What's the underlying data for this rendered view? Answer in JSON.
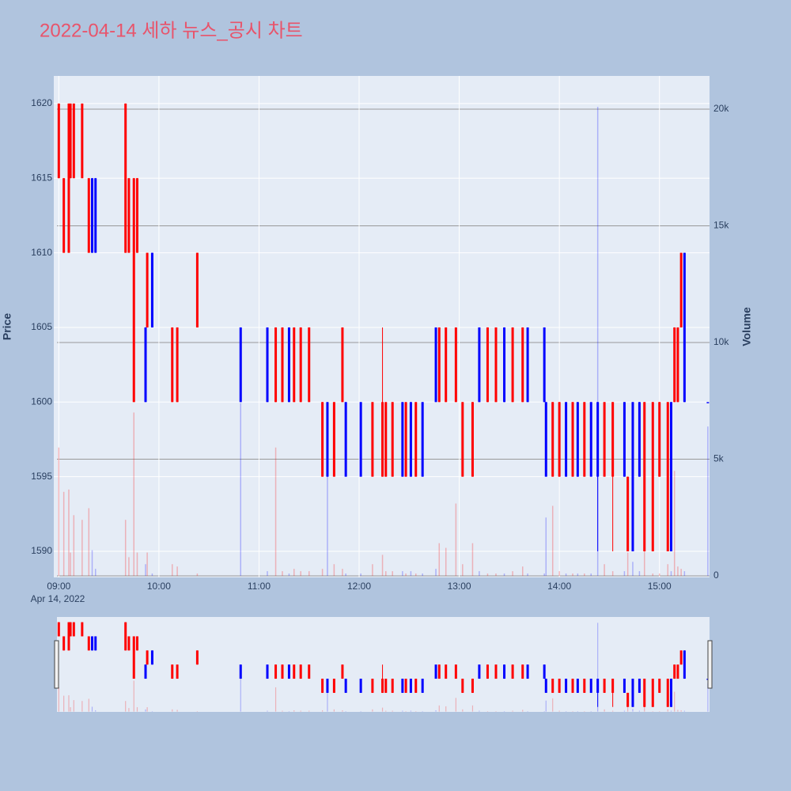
{
  "chart_data": {
    "type": "candlestick",
    "title": "2022-04-14 세하 뉴스_공시 차트",
    "y_label": "Price",
    "y2_label": "Volume",
    "x_date_label": "Apr 14, 2022",
    "increasing_color": "#ff0000",
    "decreasing_color": "#0000ff",
    "x": [
      "09:00",
      "09:03",
      "09:06",
      "09:07",
      "09:09",
      "09:14",
      "09:18",
      "09:20",
      "09:22",
      "09:40",
      "09:42",
      "09:45",
      "09:47",
      "09:52",
      "09:53",
      "09:56",
      "10:08",
      "10:11",
      "10:23",
      "10:49",
      "11:05",
      "11:10",
      "11:14",
      "11:18",
      "11:21",
      "11:25",
      "11:30",
      "11:38",
      "11:41",
      "11:45",
      "11:50",
      "11:52",
      "12:01",
      "12:08",
      "12:14",
      "12:16",
      "12:20",
      "12:26",
      "12:28",
      "12:31",
      "12:34",
      "12:38",
      "12:46",
      "12:48",
      "12:52",
      "12:58",
      "13:02",
      "13:08",
      "13:12",
      "13:17",
      "13:22",
      "13:27",
      "13:32",
      "13:38",
      "13:41",
      "13:51",
      "13:52",
      "13:56",
      "14:00",
      "14:04",
      "14:08",
      "14:11",
      "14:15",
      "14:19",
      "14:23",
      "14:27",
      "14:32",
      "14:39",
      "14:41",
      "14:44",
      "14:48",
      "14:51",
      "14:56",
      "15:00",
      "15:05",
      "15:07",
      "15:09",
      "15:11",
      "15:13",
      "15:15",
      "15:29"
    ],
    "open": [
      1615,
      1610,
      1610,
      1615,
      1615,
      1615,
      1610,
      1615,
      1615,
      1610,
      1610,
      1600,
      1610,
      1605,
      1605,
      1610,
      1600,
      1600,
      1605,
      1605,
      1605,
      1600,
      1600,
      1605,
      1600,
      1600,
      1600,
      1595,
      1600,
      1595,
      1600,
      1600,
      1600,
      1595,
      1595,
      1595,
      1595,
      1600,
      1595,
      1600,
      1595,
      1600,
      1605,
      1600,
      1600,
      1600,
      1595,
      1595,
      1605,
      1600,
      1600,
      1605,
      1600,
      1600,
      1605,
      1605,
      1600,
      1595,
      1595,
      1600,
      1595,
      1600,
      1595,
      1600,
      1600,
      1595,
      1595,
      1600,
      1590,
      1600,
      1600,
      1590,
      1590,
      1595,
      1590,
      1600,
      1600,
      1600,
      1605,
      1610,
      1600
    ],
    "high": [
      1620,
      1615,
      1620,
      1620,
      1620,
      1620,
      1615,
      1615,
      1615,
      1620,
      1615,
      1615,
      1615,
      1605,
      1610,
      1610,
      1605,
      1605,
      1610,
      1605,
      1605,
      1605,
      1605,
      1605,
      1605,
      1605,
      1605,
      1600,
      1600,
      1600,
      1605,
      1600,
      1600,
      1600,
      1605,
      1600,
      1600,
      1600,
      1600,
      1600,
      1600,
      1600,
      1605,
      1605,
      1605,
      1605,
      1600,
      1600,
      1605,
      1605,
      1605,
      1605,
      1605,
      1605,
      1605,
      1605,
      1600,
      1600,
      1600,
      1600,
      1600,
      1600,
      1600,
      1600,
      1600,
      1600,
      1600,
      1600,
      1595,
      1600,
      1600,
      1600,
      1600,
      1600,
      1600,
      1600,
      1605,
      1605,
      1610,
      1610,
      1600
    ],
    "low": [
      1615,
      1610,
      1610,
      1615,
      1615,
      1615,
      1610,
      1610,
      1610,
      1610,
      1610,
      1600,
      1610,
      1600,
      1605,
      1605,
      1600,
      1600,
      1605,
      1600,
      1600,
      1600,
      1600,
      1600,
      1600,
      1600,
      1600,
      1595,
      1595,
      1595,
      1600,
      1595,
      1595,
      1595,
      1595,
      1595,
      1595,
      1595,
      1595,
      1595,
      1595,
      1595,
      1600,
      1600,
      1600,
      1600,
      1595,
      1595,
      1600,
      1600,
      1600,
      1600,
      1600,
      1600,
      1600,
      1600,
      1595,
      1595,
      1595,
      1595,
      1595,
      1595,
      1595,
      1595,
      1590,
      1595,
      1590,
      1595,
      1590,
      1590,
      1595,
      1590,
      1590,
      1595,
      1590,
      1590,
      1600,
      1600,
      1605,
      1600,
      1600
    ],
    "close": [
      1620,
      1615,
      1620,
      1620,
      1620,
      1620,
      1615,
      1610,
      1610,
      1620,
      1615,
      1615,
      1615,
      1600,
      1610,
      1605,
      1605,
      1605,
      1610,
      1600,
      1600,
      1605,
      1605,
      1600,
      1605,
      1605,
      1605,
      1600,
      1595,
      1600,
      1605,
      1595,
      1595,
      1600,
      1600,
      1600,
      1600,
      1595,
      1600,
      1595,
      1600,
      1595,
      1600,
      1605,
      1605,
      1605,
      1600,
      1600,
      1600,
      1605,
      1605,
      1600,
      1605,
      1605,
      1600,
      1600,
      1595,
      1600,
      1600,
      1595,
      1600,
      1595,
      1600,
      1595,
      1595,
      1600,
      1600,
      1595,
      1595,
      1590,
      1595,
      1600,
      1600,
      1600,
      1600,
      1590,
      1605,
      1605,
      1610,
      1600,
      1600
    ],
    "volume": [
      5500,
      3600,
      3700,
      1000,
      2600,
      2400,
      2900,
      1100,
      300,
      2400,
      800,
      7000,
      1000,
      500,
      1000,
      100,
      500,
      400,
      100,
      7400,
      200,
      5500,
      200,
      100,
      300,
      200,
      200,
      300,
      4300,
      500,
      300,
      100,
      100,
      500,
      900,
      200,
      200,
      200,
      100,
      200,
      100,
      100,
      300,
      1400,
      1200,
      3100,
      500,
      1400,
      200,
      100,
      100,
      100,
      200,
      400,
      100,
      100,
      2500,
      3000,
      200,
      100,
      100,
      100,
      100,
      100,
      20100,
      500,
      200,
      200,
      1000,
      600,
      200,
      1500,
      100,
      100,
      500,
      200,
      4500,
      400,
      300,
      200,
      6400
    ],
    "xlim": [
      "08:57",
      "15:30"
    ],
    "xticks": [
      "09:00",
      "10:00",
      "11:00",
      "12:00",
      "13:00",
      "14:00",
      "15:00"
    ],
    "ylim": [
      1588.25,
      1621.85
    ],
    "yticks": [
      1590,
      1595,
      1600,
      1605,
      1610,
      1615,
      1620
    ],
    "y2lim": [
      -68,
      21424
    ],
    "y2ticks": [
      0,
      {
        "value": 5000,
        "label": "5k"
      },
      {
        "value": 10000,
        "label": "10k"
      },
      {
        "value": 15000,
        "label": "15k"
      },
      {
        "value": 20000,
        "label": "20k"
      }
    ],
    "grid": true,
    "rangeslider": true
  }
}
